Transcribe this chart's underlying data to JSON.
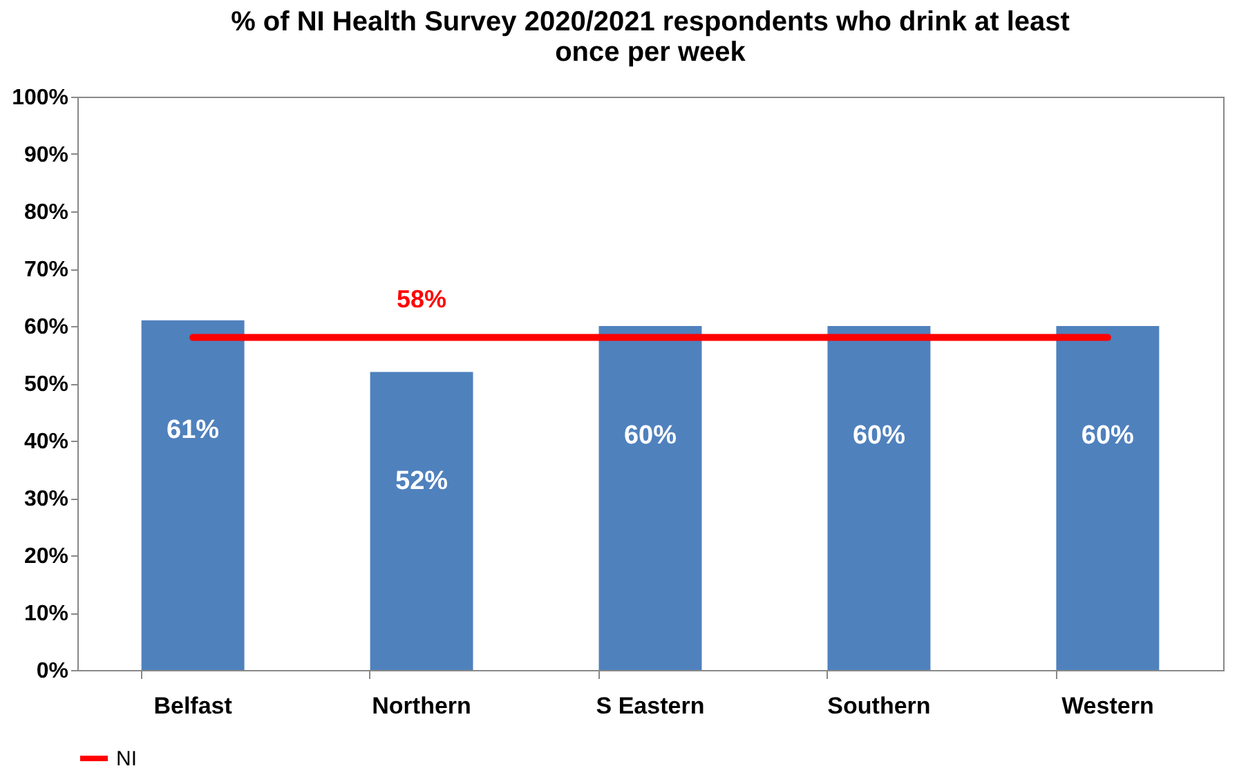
{
  "chart_data": {
    "type": "bar",
    "title": "% of NI Health Survey 2020/2021 respondents who drink at least once per week",
    "categories": [
      "Belfast",
      "Northern",
      "S Eastern",
      "Southern",
      "Western"
    ],
    "series": [
      {
        "color": "#4f81bd",
        "values": [
          61,
          52,
          60,
          60,
          60
        ],
        "value_labels": [
          "61%",
          "52%",
          "60%",
          "60%",
          "60%"
        ]
      },
      {
        "type": "line",
        "name": "NI",
        "color": "#ff0000",
        "values": [
          58,
          58,
          58,
          58,
          58
        ]
      }
    ],
    "annotations": [
      {
        "text": "58%",
        "x": "Northern",
        "y": 58
      }
    ],
    "ylim": [
      0,
      100
    ],
    "yticks": [
      {
        "value": 0,
        "label": "0%"
      },
      {
        "value": 10,
        "label": "10%"
      },
      {
        "value": 20,
        "label": "20%"
      },
      {
        "value": 30,
        "label": "30%"
      },
      {
        "value": 40,
        "label": "40%"
      },
      {
        "value": 50,
        "label": "50%"
      },
      {
        "value": 60,
        "label": "60%"
      },
      {
        "value": 70,
        "label": "70%"
      },
      {
        "value": 80,
        "label": "80%"
      },
      {
        "value": 90,
        "label": "90%"
      },
      {
        "value": 100,
        "label": "100%"
      }
    ],
    "grid": false,
    "legend": "bottom"
  }
}
